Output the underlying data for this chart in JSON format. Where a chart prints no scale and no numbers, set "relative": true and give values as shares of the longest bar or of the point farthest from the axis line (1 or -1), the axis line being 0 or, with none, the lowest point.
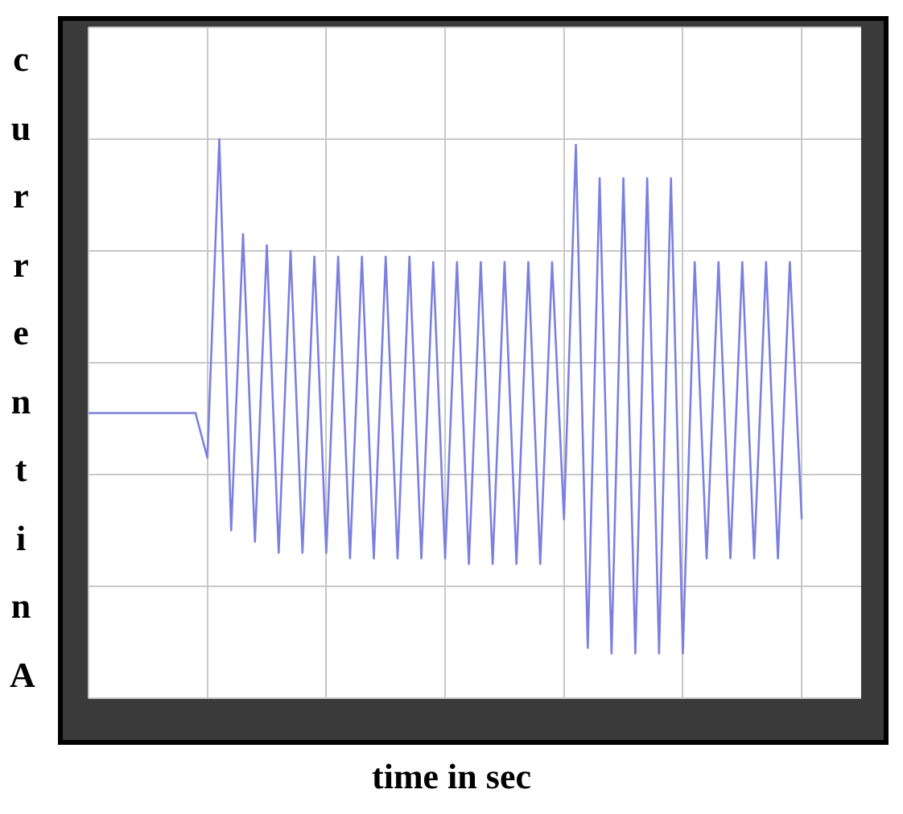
{
  "chart_data": {
    "type": "line",
    "xlabel": "time in sec",
    "ylabel": "current in A",
    "relative": true,
    "grid": true,
    "tick_labels": false,
    "categories": [
      null,
      null,
      null,
      null,
      null,
      null,
      null,
      null,
      null,
      null,
      null,
      null,
      null,
      null,
      null,
      null,
      null,
      null,
      null,
      null,
      null,
      null,
      null,
      null,
      null,
      null,
      null,
      null,
      null,
      null,
      null,
      null,
      null,
      null,
      null,
      null,
      null,
      null,
      null,
      null,
      null,
      null,
      null,
      null,
      null,
      null,
      null,
      null,
      null,
      null,
      null,
      null,
      null,
      null,
      null,
      null,
      null,
      null,
      null,
      null,
      null,
      null,
      null,
      null,
      null,
      null
    ],
    "series": [
      {
        "color": "#7b80e0",
        "values": [
          0.51,
          0.51,
          0.51,
          0.51,
          0.51,
          0.51,
          0.51,
          0.51,
          0.51,
          0.51,
          0.43,
          1.0,
          0.3,
          0.83,
          0.28,
          0.81,
          0.26,
          0.8,
          0.26,
          0.79,
          0.26,
          0.79,
          0.25,
          0.79,
          0.25,
          0.79,
          0.25,
          0.79,
          0.25,
          0.78,
          0.25,
          0.78,
          0.24,
          0.78,
          0.24,
          0.78,
          0.24,
          0.78,
          0.24,
          0.78,
          0.32,
          0.99,
          0.09,
          0.93,
          0.08,
          0.93,
          0.08,
          0.93,
          0.08,
          0.93,
          0.08,
          0.78,
          0.25,
          0.78,
          0.25,
          0.78,
          0.25,
          0.78,
          0.25,
          0.78,
          0.32,
          null,
          null,
          null,
          null,
          null
        ]
      }
    ]
  }
}
